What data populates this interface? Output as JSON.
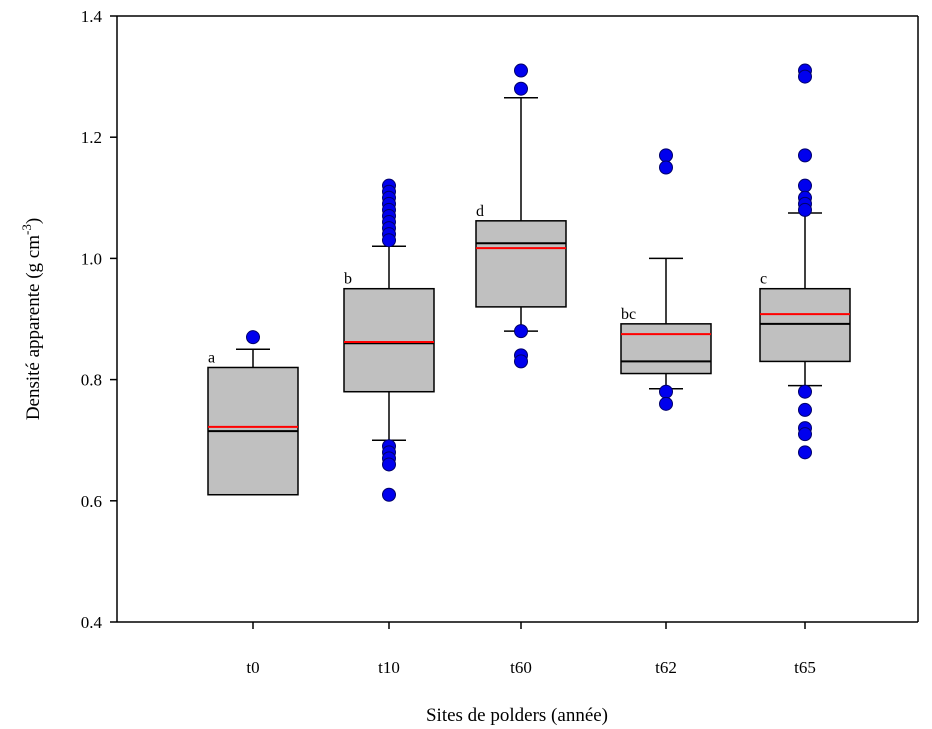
{
  "chart_data": {
    "type": "box",
    "xlabel": "Sites de polders (année)",
    "ylabel": {
      "main": "Densité apparente (g cm",
      "superscript": "-3",
      "close": ")"
    },
    "ylim": [
      0.4,
      1.4
    ],
    "yticks": [
      "0.4",
      "0.6",
      "0.8",
      "1.0",
      "1.2",
      "1.4"
    ],
    "grid": false,
    "colors": {
      "box_fill": "#c0c0c0",
      "median": "#000000",
      "mean": "#ff0000",
      "outlier": "#0000ee"
    },
    "groups": [
      {
        "category": "t0",
        "letter": "a",
        "whisker_low": 0.61,
        "q1": 0.61,
        "median": 0.715,
        "mean": 0.722,
        "q3": 0.82,
        "whisker_high": 0.85,
        "outliers": [
          0.87
        ]
      },
      {
        "category": "t10",
        "letter": "b",
        "whisker_low": 0.7,
        "q1": 0.78,
        "median": 0.86,
        "mean": 0.862,
        "q3": 0.95,
        "whisker_high": 1.02,
        "outliers": [
          1.12,
          1.11,
          1.1,
          1.09,
          1.08,
          1.07,
          1.06,
          1.05,
          1.04,
          1.03,
          0.69,
          0.68,
          0.67,
          0.66,
          0.61
        ]
      },
      {
        "category": "t60",
        "letter": "d",
        "whisker_low": 0.88,
        "q1": 0.92,
        "median": 1.025,
        "mean": 1.017,
        "q3": 1.062,
        "whisker_high": 1.265,
        "outliers": [
          1.31,
          1.28,
          0.88,
          0.84,
          0.83
        ]
      },
      {
        "category": "t62",
        "letter": "bc",
        "whisker_low": 0.785,
        "q1": 0.81,
        "median": 0.83,
        "mean": 0.875,
        "q3": 0.892,
        "whisker_high": 1.0,
        "outliers": [
          1.17,
          1.15,
          0.78,
          0.76
        ]
      },
      {
        "category": "t65",
        "letter": "c",
        "whisker_low": 0.79,
        "q1": 0.83,
        "median": 0.892,
        "mean": 0.908,
        "q3": 0.95,
        "whisker_high": 1.075,
        "outliers": [
          1.31,
          1.3,
          1.17,
          1.12,
          1.1,
          1.09,
          1.08,
          0.78,
          0.75,
          0.72,
          0.71,
          0.68
        ]
      }
    ]
  }
}
